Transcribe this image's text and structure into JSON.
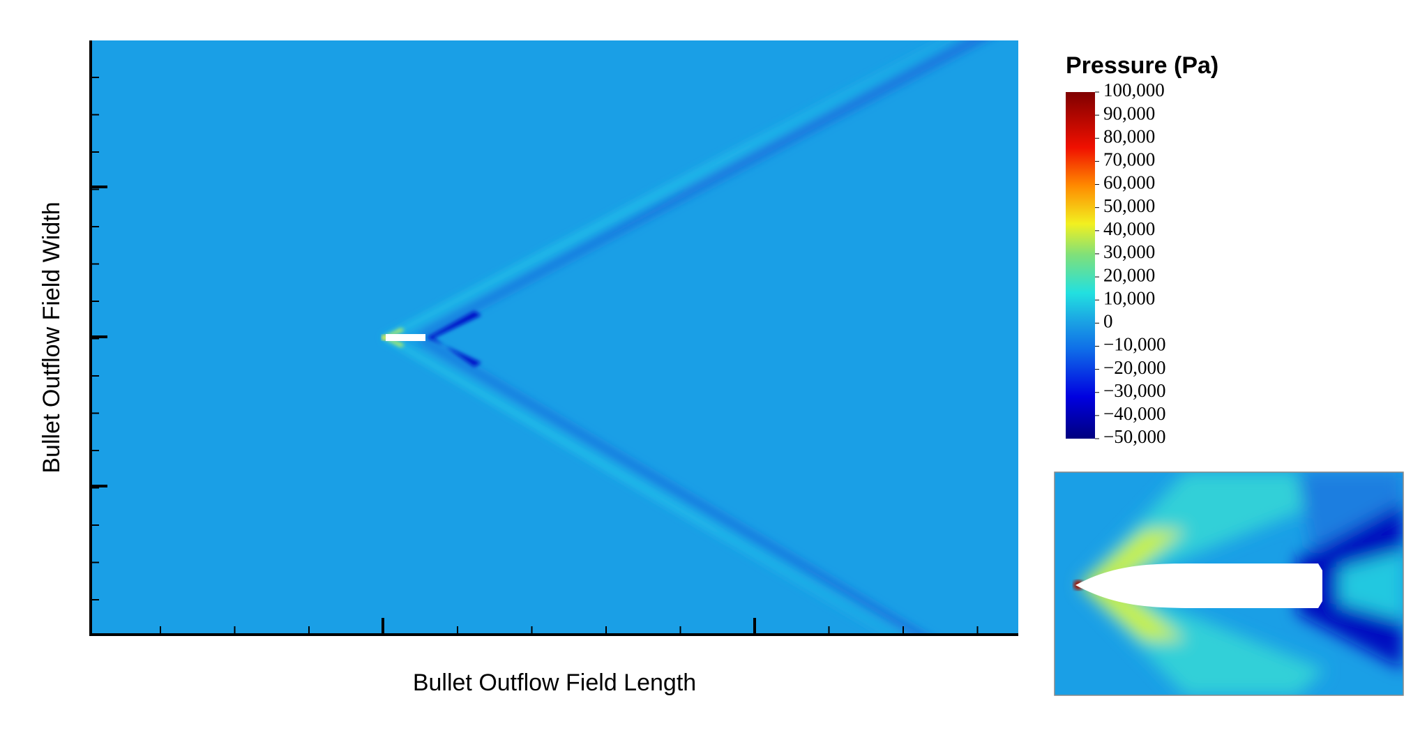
{
  "chart_data": {
    "type": "contour",
    "xlabel": "Bullet Outflow Field Length",
    "ylabel": "Bullet Outflow Field Width",
    "colorbar_title": "Pressure (Pa)",
    "clim": [
      -50000,
      100000
    ],
    "cticks": [
      {
        "value": 100000,
        "label": "100,000"
      },
      {
        "value": 90000,
        "label": "90,000"
      },
      {
        "value": 80000,
        "label": "80,000"
      },
      {
        "value": 70000,
        "label": "70,000"
      },
      {
        "value": 60000,
        "label": "60,000"
      },
      {
        "value": 50000,
        "label": "50,000"
      },
      {
        "value": 40000,
        "label": "40,000"
      },
      {
        "value": 30000,
        "label": "30,000"
      },
      {
        "value": 20000,
        "label": "20,000"
      },
      {
        "value": 10000,
        "label": "10,000"
      },
      0,
      {
        "value": -10000,
        "label": "−10,000"
      },
      {
        "value": -20000,
        "label": "−20,000"
      },
      {
        "value": -30000,
        "label": "−30,000"
      },
      {
        "value": -40000,
        "label": "−40,000"
      },
      {
        "value": -50000,
        "label": "−50,000"
      }
    ]
  }
}
